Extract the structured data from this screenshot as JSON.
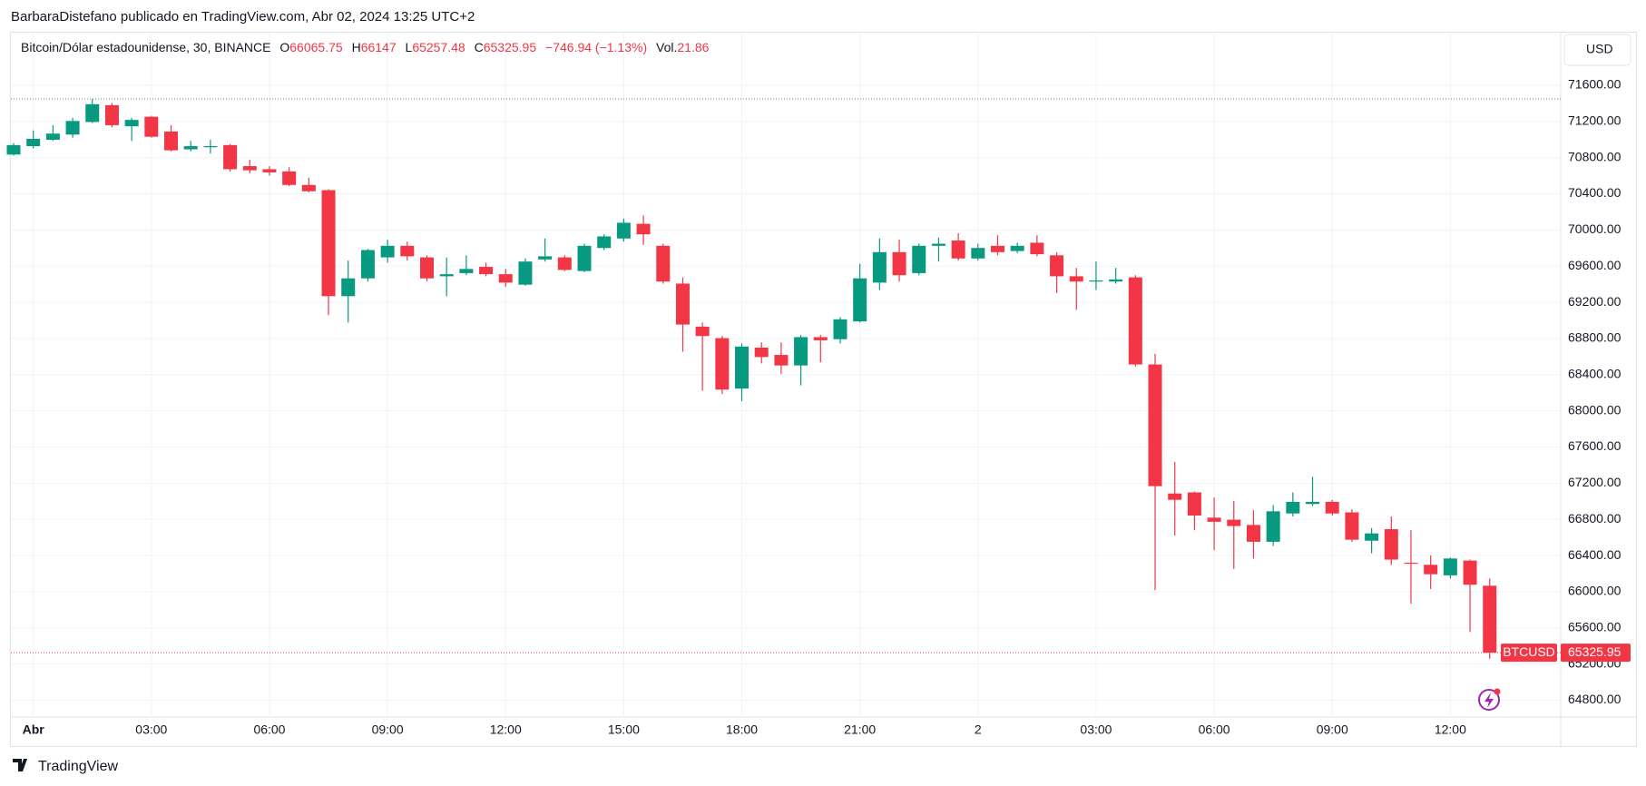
{
  "header": {
    "publisher": "BarbaraDistefano publicado en TradingView.com, Abr 02, 2024 13:25 UTC+2",
    "symbol": "Bitcoin/Dólar estadounidense, 30, BINANCE",
    "open_label": "O",
    "high_label": "H",
    "low_label": "L",
    "close_label": "C",
    "change": "−746.94 (−1.13%)",
    "volume_label": "Vol.",
    "volume": 21.86,
    "currency": "USD",
    "brand": "TradingView"
  },
  "chart_data": {
    "type": "candlestick",
    "categories": [
      null,
      "Abr",
      null,
      null,
      null,
      null,
      null,
      "03:00",
      null,
      null,
      null,
      null,
      null,
      "06:00",
      null,
      null,
      null,
      null,
      null,
      "09:00",
      null,
      null,
      null,
      null,
      null,
      "12:00",
      null,
      null,
      null,
      null,
      null,
      "15:00",
      null,
      null,
      null,
      null,
      null,
      "18:00",
      null,
      null,
      null,
      null,
      null,
      "21:00",
      null,
      null,
      null,
      null,
      null,
      "2",
      null,
      null,
      null,
      null,
      null,
      "03:00",
      null,
      null,
      null,
      null,
      null,
      "06:00",
      null,
      null,
      null,
      null,
      null,
      "09:00",
      null,
      null,
      null,
      null,
      null,
      "12:00",
      null,
      null
    ],
    "series": [
      {
        "name": "BTCUSD",
        "up_color": "#089981",
        "down_color": "#f23645",
        "open": [
          70834,
          70927,
          70997,
          71055,
          71194,
          71380,
          71147,
          71252,
          71089,
          70892,
          70915,
          70939,
          70706,
          70672,
          70648,
          70498,
          70440,
          69268,
          69465,
          69697,
          69825,
          69697,
          69488,
          69523,
          69592,
          69511,
          69395,
          69674,
          69697,
          69546,
          69801,
          69906,
          70068,
          69825,
          69407,
          68931,
          68804,
          68246,
          68699,
          68618,
          68502,
          68815,
          68792,
          68989,
          69418,
          69755,
          69523,
          69825,
          69883,
          69685,
          69825,
          69767,
          69859,
          69720,
          69488,
          69430,
          69430,
          69476,
          68513,
          67086,
          67098,
          66819,
          66796,
          66738,
          66552,
          66865,
          66970,
          66993,
          66877,
          66564,
          66691,
          66320,
          66297,
          66181,
          66344,
          66065.75
        ],
        "high": [
          70962,
          71101,
          71159,
          71240,
          71449,
          71403,
          71240,
          71263,
          71159,
          70985,
          70997,
          70950,
          70776,
          70706,
          70695,
          70579,
          70451,
          69662,
          69790,
          69894,
          69871,
          69720,
          69697,
          69720,
          69639,
          69569,
          69685,
          69906,
          69720,
          69848,
          69952,
          70126,
          70161,
          69848,
          69476,
          68977,
          68827,
          68745,
          68757,
          68757,
          68838,
          68838,
          69036,
          69627,
          69906,
          69894,
          69848,
          69917,
          69964,
          69848,
          69941,
          69859,
          69941,
          69755,
          69581,
          69651,
          69581,
          69500,
          68629,
          67434,
          67109,
          67040,
          67005,
          66900,
          66958,
          67098,
          67272,
          67016,
          66912,
          66703,
          66831,
          66680,
          66401,
          66378,
          66355,
          66147.0
        ],
        "low": [
          70823,
          70904,
          70985,
          71020,
          71182,
          71136,
          70985,
          71020,
          70869,
          70869,
          70846,
          70648,
          70625,
          70602,
          70486,
          70416,
          69059,
          68977,
          69430,
          69639,
          69662,
          69430,
          69268,
          69500,
          69488,
          69372,
          69384,
          69651,
          69546,
          69534,
          69778,
          69871,
          69836,
          69407,
          68653,
          68223,
          68188,
          68107,
          68525,
          68409,
          68281,
          68537,
          68745,
          68977,
          69337,
          69430,
          69500,
          69651,
          69662,
          69662,
          69720,
          69743,
          69709,
          69302,
          69117,
          69337,
          69407,
          68490,
          66018,
          66622,
          66680,
          66459,
          66251,
          66367,
          66506,
          66831,
          66947,
          66842,
          66552,
          66425,
          66297,
          65867,
          66030,
          66146,
          65554,
          65257.48
        ],
        "close": [
          70939,
          71008,
          71066,
          71205,
          71391,
          71159,
          71217,
          71031,
          70881,
          70927,
          70927,
          70672,
          70660,
          70637,
          70498,
          70428,
          69268,
          69465,
          69778,
          69825,
          69709,
          69465,
          69511,
          69569,
          69511,
          69418,
          69651,
          69709,
          69558,
          69825,
          69929,
          70080,
          69952,
          69430,
          68954,
          68827,
          68235,
          68711,
          68595,
          68502,
          68815,
          68780,
          69012,
          69465,
          69755,
          69500,
          69825,
          69848,
          69685,
          69801,
          69755,
          69825,
          69732,
          69488,
          69430,
          69442,
          69453,
          68513,
          67167,
          67016,
          66842,
          66773,
          66726,
          66552,
          66889,
          66993,
          66993,
          66865,
          66575,
          66645,
          66355,
          66309,
          66193,
          66367,
          66077,
          65325.95
        ]
      }
    ],
    "ylim": [
      64614,
      72192
    ],
    "yticks": [
      {
        "value": 64800,
        "label": "64800.00"
      },
      {
        "value": 65200,
        "label": "65200.00"
      },
      {
        "value": 65600,
        "label": "65600.00"
      },
      {
        "value": 66000,
        "label": "66000.00"
      },
      {
        "value": 66400,
        "label": "66400.00"
      },
      {
        "value": 66800,
        "label": "66800.00"
      },
      {
        "value": 67200,
        "label": "67200.00"
      },
      {
        "value": 67600,
        "label": "67600.00"
      },
      {
        "value": 68000,
        "label": "68000.00"
      },
      {
        "value": 68400,
        "label": "68400.00"
      },
      {
        "value": 68800,
        "label": "68800.00"
      },
      {
        "value": 69200,
        "label": "69200.00"
      },
      {
        "value": 69600,
        "label": "69600.00"
      },
      {
        "value": 70000,
        "label": "70000.00"
      },
      {
        "value": 70400,
        "label": "70400.00"
      },
      {
        "value": 70800,
        "label": "70800.00"
      },
      {
        "value": 71200,
        "label": "71200.00"
      },
      {
        "value": 71600,
        "label": "71600.00"
      }
    ],
    "grid": true
  }
}
